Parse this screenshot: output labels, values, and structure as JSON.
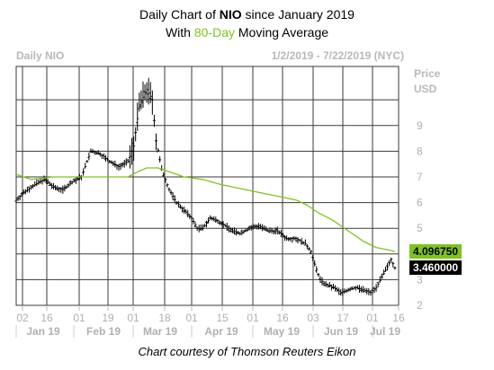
{
  "header": {
    "title_prefix": "Daily Chart of ",
    "title_ticker": "NIO",
    "title_suffix": " since January 2019",
    "subtitle_prefix": "With ",
    "subtitle_highlight": "80-Day",
    "subtitle_suffix": " Moving Average",
    "chart_label": "Daily NIO",
    "date_range": "1/2/2019 - 7/22/2019 (NYC)",
    "unit_line1": "Price",
    "unit_line2": "USD"
  },
  "footer": "Chart courtesy of Thomson Reuters Eikon",
  "colors": {
    "price_bars": "#000000",
    "moving_average": "#7fc31c",
    "grid": "#3a3a3a",
    "axis_text": "#b0b0b0"
  },
  "chart_data": {
    "type": "line",
    "y_ticks": [
      2,
      3,
      4,
      5,
      6,
      7,
      8,
      9
    ],
    "ylim": [
      2,
      11.3
    ],
    "x_day_labels": [
      "02",
      "16",
      "01",
      "19",
      "01",
      "18",
      "01",
      "15",
      "01",
      "16",
      "03",
      "17",
      "01",
      "16"
    ],
    "x_month_labels": [
      "Jan 19",
      "Feb 19",
      "Mar 19",
      "Apr 19",
      "May 19",
      "Jun 19",
      "Jul 19"
    ],
    "series": [
      {
        "name": "",
        "kind": "price",
        "points": [
          [
            0,
            6.1
          ],
          [
            5,
            6.45
          ],
          [
            10,
            6.7
          ],
          [
            15,
            6.9
          ],
          [
            20,
            6.6
          ],
          [
            25,
            6.5
          ],
          [
            30,
            6.8
          ],
          [
            35,
            7.0
          ],
          [
            40,
            8.0
          ],
          [
            45,
            7.9
          ],
          [
            50,
            7.6
          ],
          [
            55,
            7.4
          ],
          [
            60,
            7.6
          ],
          [
            63,
            8.2
          ],
          [
            66,
            9.8
          ],
          [
            70,
            10.4
          ],
          [
            73,
            10.0
          ],
          [
            75,
            8.4
          ],
          [
            78,
            7.3
          ],
          [
            82,
            6.5
          ],
          [
            86,
            6.0
          ],
          [
            90,
            5.7
          ],
          [
            94,
            5.4
          ],
          [
            97,
            5.0
          ],
          [
            100,
            5.0
          ],
          [
            104,
            5.4
          ],
          [
            108,
            5.3
          ],
          [
            112,
            5.1
          ],
          [
            116,
            4.9
          ],
          [
            120,
            4.8
          ],
          [
            125,
            5.0
          ],
          [
            130,
            5.1
          ],
          [
            135,
            4.9
          ],
          [
            140,
            4.9
          ],
          [
            145,
            4.6
          ],
          [
            150,
            4.6
          ],
          [
            155,
            4.4
          ],
          [
            158,
            4.1
          ],
          [
            160,
            3.6
          ],
          [
            163,
            3.0
          ],
          [
            166,
            2.8
          ],
          [
            170,
            2.7
          ],
          [
            174,
            2.5
          ],
          [
            178,
            2.6
          ],
          [
            182,
            2.7
          ],
          [
            186,
            2.6
          ],
          [
            190,
            2.5
          ],
          [
            193,
            2.7
          ],
          [
            196,
            3.1
          ],
          [
            199,
            3.5
          ],
          [
            201,
            3.8
          ],
          [
            203,
            3.46
          ]
        ]
      },
      {
        "name": "",
        "kind": "moving_average",
        "points": [
          [
            0,
            7.1
          ],
          [
            8,
            6.9
          ],
          [
            20,
            7.0
          ],
          [
            40,
            7.0
          ],
          [
            50,
            7.0
          ],
          [
            60,
            7.0
          ],
          [
            65,
            7.2
          ],
          [
            70,
            7.35
          ],
          [
            76,
            7.35
          ],
          [
            82,
            7.2
          ],
          [
            90,
            7.0
          ],
          [
            100,
            6.9
          ],
          [
            110,
            6.7
          ],
          [
            120,
            6.55
          ],
          [
            130,
            6.4
          ],
          [
            140,
            6.25
          ],
          [
            150,
            6.1
          ],
          [
            156,
            5.9
          ],
          [
            162,
            5.6
          ],
          [
            170,
            5.3
          ],
          [
            178,
            4.9
          ],
          [
            186,
            4.5
          ],
          [
            193,
            4.25
          ],
          [
            200,
            4.15
          ],
          [
            203,
            4.097
          ]
        ]
      }
    ],
    "last_values": {
      "moving_average": "4.096750",
      "price": "3.460000"
    }
  }
}
